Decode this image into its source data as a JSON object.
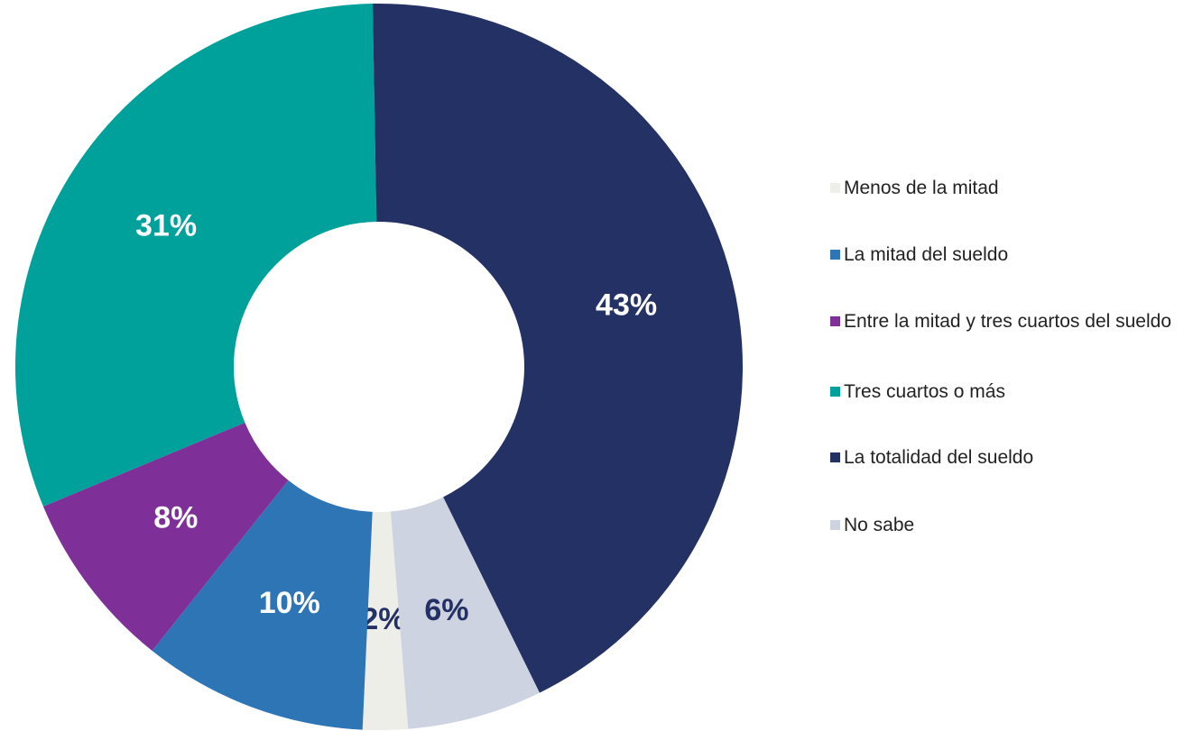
{
  "chart_data": {
    "type": "donut",
    "categories": [
      "Menos de la mitad",
      "La mitad del sueldo",
      "Entre la mitad y tres cuartos del sueldo",
      "Tres cuartos o más",
      "La totalidad del sueldo",
      "No sabe"
    ],
    "values": [
      2,
      10,
      8,
      31,
      43,
      6
    ],
    "value_labels": [
      "2%",
      "10%",
      "8%",
      "31%",
      "43%",
      "6%"
    ],
    "colors": [
      "#eeeee8",
      "#2e75b6",
      "#7f3098",
      "#00a19a",
      "#243165",
      "#cdd3e0"
    ],
    "legend": "right"
  }
}
